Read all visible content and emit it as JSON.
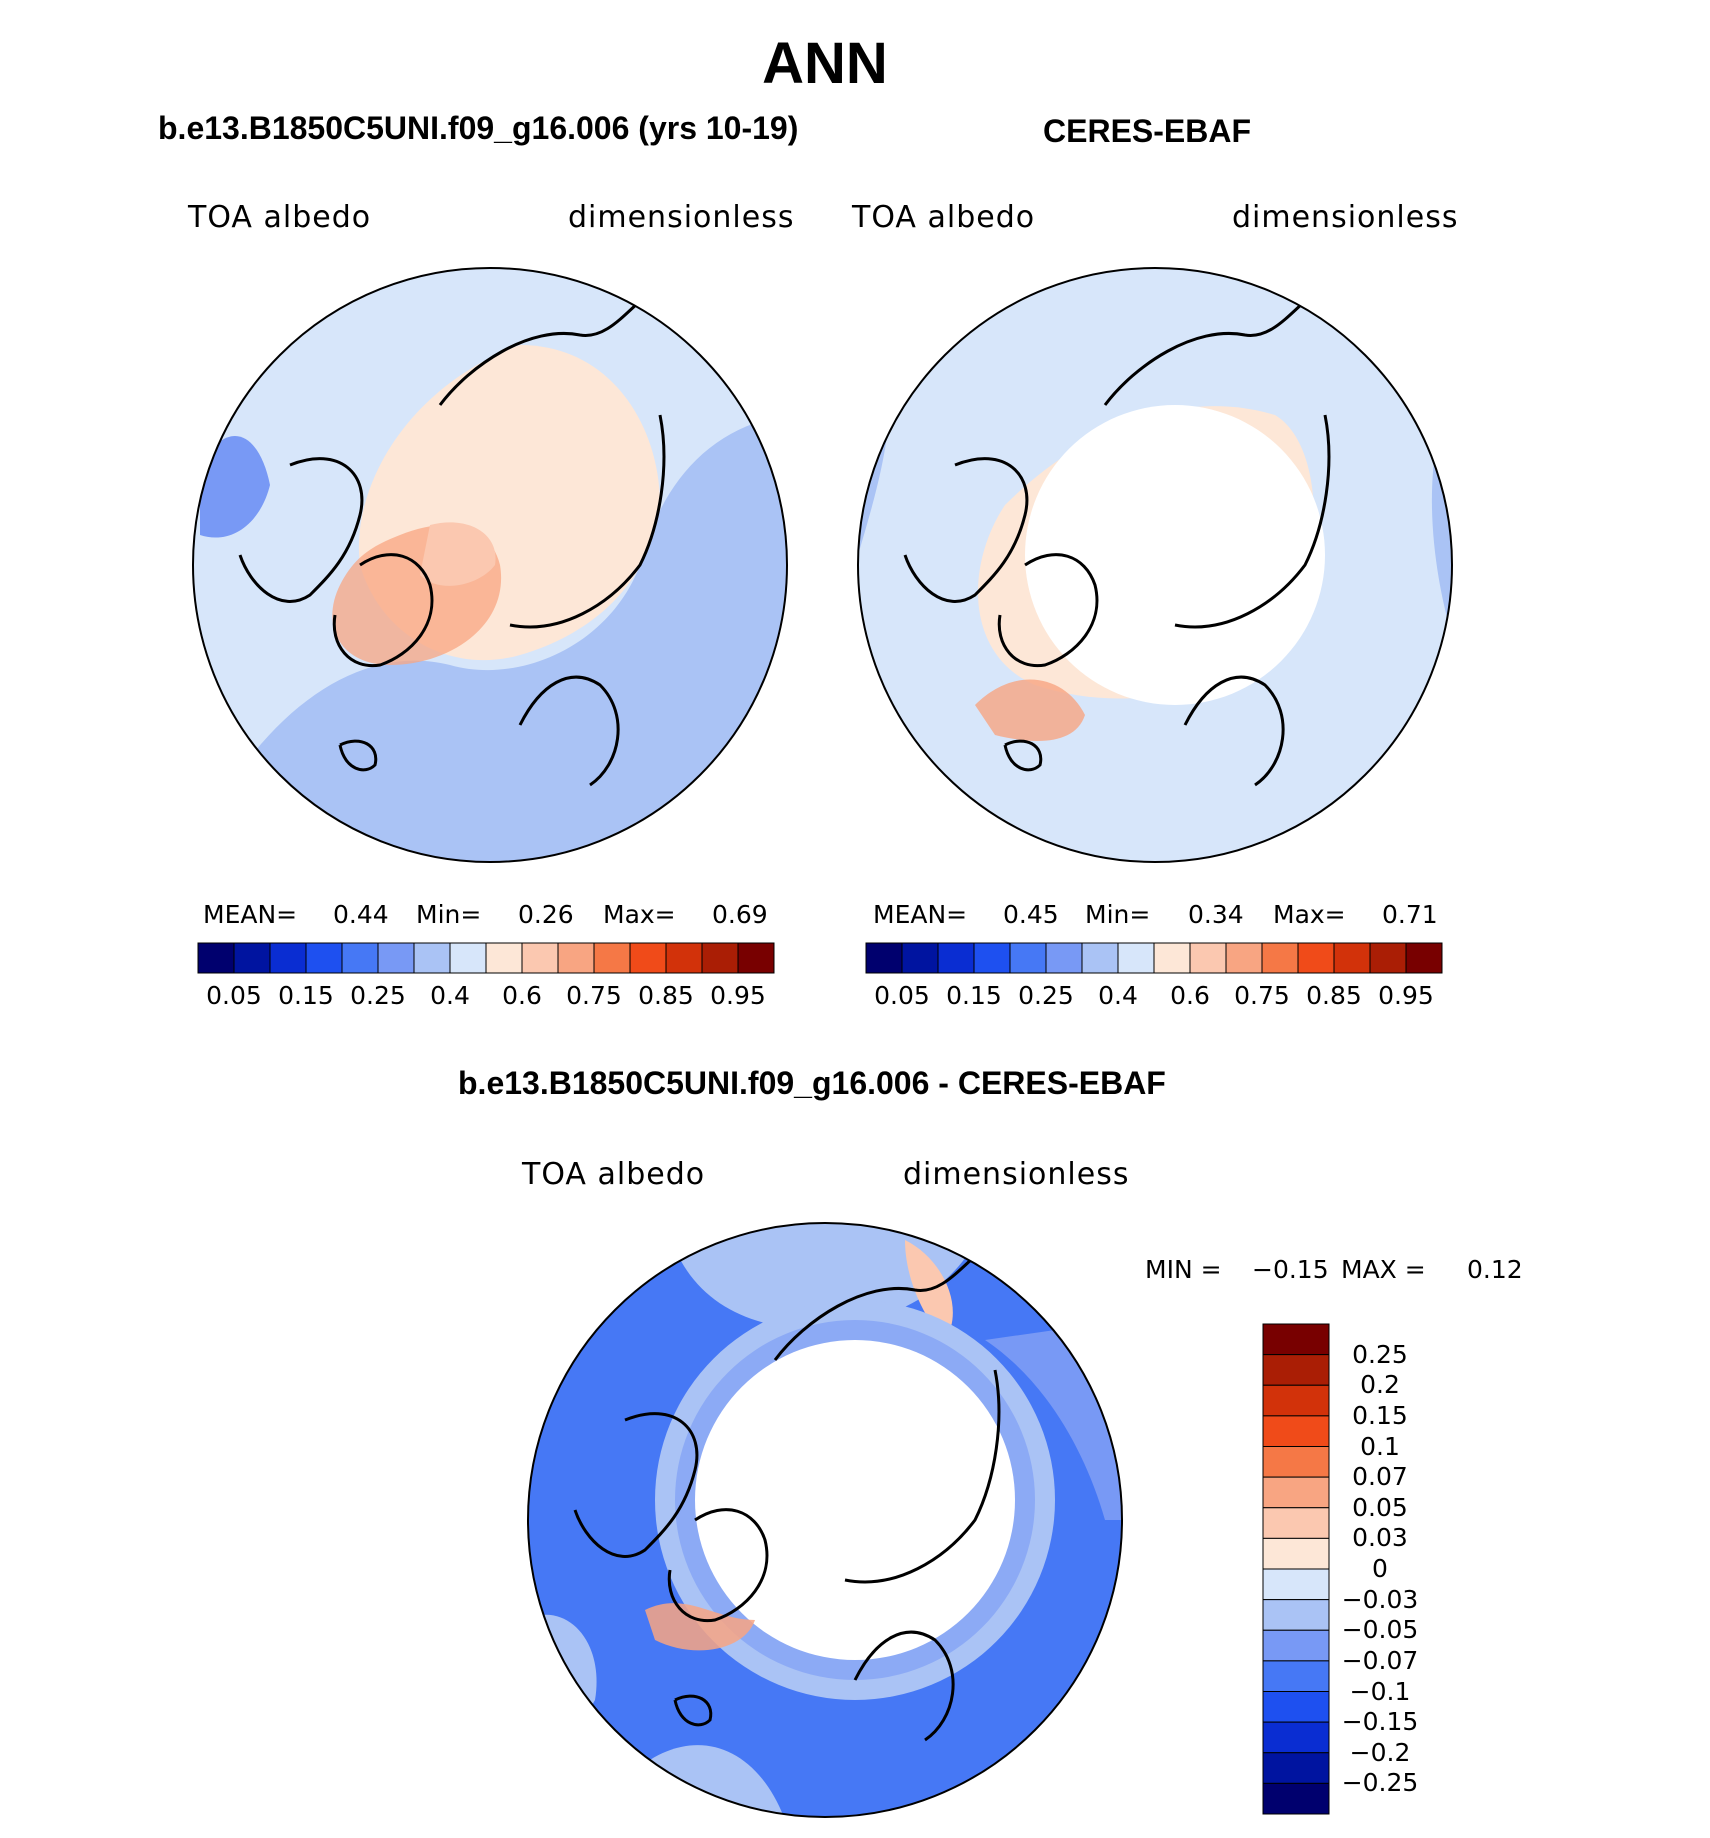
{
  "page_title": "ANN",
  "panels": [
    {
      "case_title": "b.e13.B1850C5UNI.f09_g16.006 (yrs 10-19)",
      "variable": "TOA albedo",
      "units": "dimensionless",
      "stats": {
        "mean_label": "MEAN=",
        "mean": "0.44",
        "min_label": "Min=",
        "min": "0.26",
        "max_label": "Max=",
        "max": "0.69"
      },
      "ticks": [
        "0.05",
        "0.15",
        "0.25",
        "0.4",
        "0.6",
        "0.75",
        "0.85",
        "0.95"
      ]
    },
    {
      "case_title": "CERES-EBAF",
      "variable": "TOA albedo",
      "units": "dimensionless",
      "stats": {
        "mean_label": "MEAN=",
        "mean": "0.45",
        "min_label": "Min=",
        "min": "0.34",
        "max_label": "Max=",
        "max": "0.71"
      },
      "ticks": [
        "0.05",
        "0.15",
        "0.25",
        "0.4",
        "0.6",
        "0.75",
        "0.85",
        "0.95"
      ]
    }
  ],
  "diff": {
    "title": "b.e13.B1850C5UNI.f09_g16.006 - CERES-EBAF",
    "variable": "TOA albedo",
    "units": "dimensionless",
    "minmax": {
      "min_label": "MIN =",
      "min": "−0.15",
      "max_label": "MAX =",
      "max": "0.12"
    },
    "ticks": [
      "0.25",
      "0.2",
      "0.15",
      "0.1",
      "0.07",
      "0.05",
      "0.03",
      "0",
      "−0.03",
      "−0.05",
      "−0.07",
      "−0.1",
      "−0.15",
      "−0.2",
      "−0.25"
    ]
  },
  "colors": {
    "abs_scale": [
      "#00006e",
      "#0014a0",
      "#0a2dd2",
      "#1e50f0",
      "#4678f5",
      "#7899f5",
      "#aac3f5",
      "#d7e6fa",
      "#fde7d7",
      "#fbc8b0",
      "#f8a582",
      "#f57846",
      "#f04b19",
      "#d2320a",
      "#aa1e05",
      "#780000"
    ],
    "diff_scale": [
      "#780000",
      "#aa1e05",
      "#d2320a",
      "#f04b19",
      "#f57846",
      "#f8a582",
      "#fbc8b0",
      "#fde7d7",
      "#d7e6fa",
      "#aac3f5",
      "#7899f5",
      "#4678f5",
      "#1e50f0",
      "#0a2dd2",
      "#0014a0",
      "#00006e"
    ]
  }
}
